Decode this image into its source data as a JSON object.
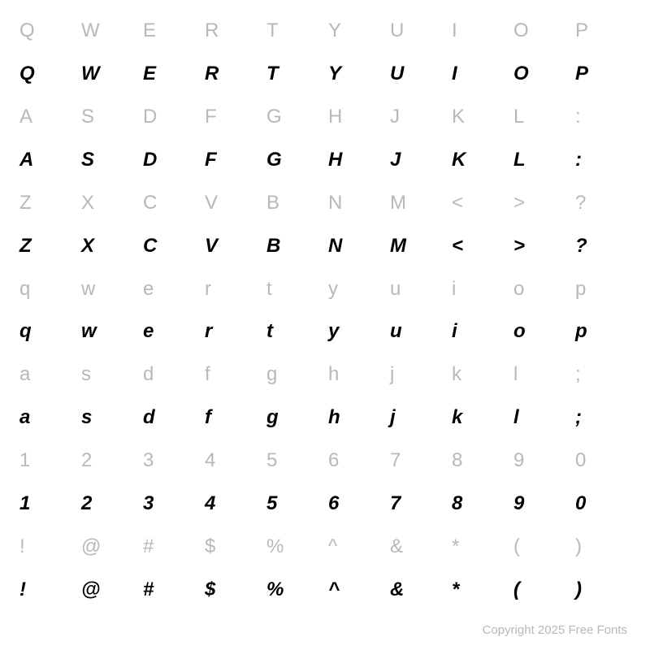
{
  "specimen": {
    "rows": [
      {
        "style": "ref",
        "chars": [
          "Q",
          "W",
          "E",
          "R",
          "T",
          "Y",
          "U",
          "I",
          "O",
          "P"
        ]
      },
      {
        "style": "sample",
        "chars": [
          "Q",
          "W",
          "E",
          "R",
          "T",
          "Y",
          "U",
          "I",
          "O",
          "P"
        ]
      },
      {
        "style": "ref",
        "chars": [
          "A",
          "S",
          "D",
          "F",
          "G",
          "H",
          "J",
          "K",
          "L",
          ":"
        ]
      },
      {
        "style": "sample",
        "chars": [
          "A",
          "S",
          "D",
          "F",
          "G",
          "H",
          "J",
          "K",
          "L",
          ":"
        ]
      },
      {
        "style": "ref",
        "chars": [
          "Z",
          "X",
          "C",
          "V",
          "B",
          "N",
          "M",
          "<",
          ">",
          "?"
        ]
      },
      {
        "style": "sample",
        "chars": [
          "Z",
          "X",
          "C",
          "V",
          "B",
          "N",
          "M",
          "<",
          ">",
          "?"
        ]
      },
      {
        "style": "ref",
        "chars": [
          "q",
          "w",
          "e",
          "r",
          "t",
          "y",
          "u",
          "i",
          "o",
          "p"
        ]
      },
      {
        "style": "sample",
        "chars": [
          "q",
          "w",
          "e",
          "r",
          "t",
          "y",
          "u",
          "i",
          "o",
          "p"
        ]
      },
      {
        "style": "ref",
        "chars": [
          "a",
          "s",
          "d",
          "f",
          "g",
          "h",
          "j",
          "k",
          "l",
          ";"
        ]
      },
      {
        "style": "sample",
        "chars": [
          "a",
          "s",
          "d",
          "f",
          "g",
          "h",
          "j",
          "k",
          "l",
          ";"
        ]
      },
      {
        "style": "ref",
        "chars": [
          "1",
          "2",
          "3",
          "4",
          "5",
          "6",
          "7",
          "8",
          "9",
          "0"
        ]
      },
      {
        "style": "sample",
        "chars": [
          "1",
          "2",
          "3",
          "4",
          "5",
          "6",
          "7",
          "8",
          "9",
          "0"
        ]
      },
      {
        "style": "ref",
        "chars": [
          "!",
          "@",
          "#",
          "$",
          "%",
          "^",
          "&",
          "*",
          "(",
          ")"
        ]
      },
      {
        "style": "sample",
        "chars": [
          "!",
          "@",
          "#",
          "$",
          "%",
          "^",
          "&",
          "*",
          "(",
          ")"
        ]
      }
    ],
    "columns": 10,
    "cell_fontsize": 24,
    "ref_color": "#b8b8b8",
    "sample_color": "#000000",
    "sample_weight": "700",
    "sample_style": "italic",
    "background_color": "#ffffff"
  },
  "footer": {
    "copyright": "Copyright 2025 Free Fonts"
  }
}
